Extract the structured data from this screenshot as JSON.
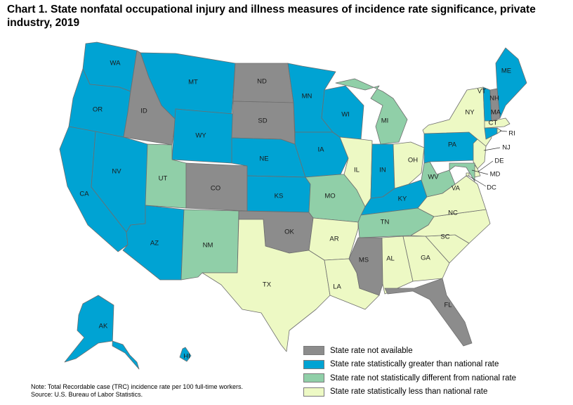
{
  "title": "Chart 1. State nonfatal occupational injury and illness measures of incidence rate significance, private industry, 2019",
  "colors": {
    "not_available": "#8c8c8c",
    "greater": "#00a3d3",
    "not_different": "#90cfa8",
    "less": "#edf9c4"
  },
  "legend": [
    {
      "key": "not_available",
      "label": "State rate not available"
    },
    {
      "key": "greater",
      "label": "State rate statistically greater than national rate"
    },
    {
      "key": "not_different",
      "label": "State rate not statistically different from national rate"
    },
    {
      "key": "less",
      "label": "State rate statistically less than national rate"
    }
  ],
  "states": {
    "WA": {
      "label": "WA",
      "category": "greater"
    },
    "OR": {
      "label": "OR",
      "category": "greater"
    },
    "CA": {
      "label": "CA",
      "category": "greater"
    },
    "ID": {
      "label": "ID",
      "category": "not_available"
    },
    "NV": {
      "label": "NV",
      "category": "greater"
    },
    "MT": {
      "label": "MT",
      "category": "greater"
    },
    "WY": {
      "label": "WY",
      "category": "greater"
    },
    "UT": {
      "label": "UT",
      "category": "not_different"
    },
    "AZ": {
      "label": "AZ",
      "category": "greater"
    },
    "CO": {
      "label": "CO",
      "category": "not_available"
    },
    "NM": {
      "label": "NM",
      "category": "not_different"
    },
    "ND": {
      "label": "ND",
      "category": "not_available"
    },
    "SD": {
      "label": "SD",
      "category": "not_available"
    },
    "NE": {
      "label": "NE",
      "category": "greater"
    },
    "KS": {
      "label": "KS",
      "category": "greater"
    },
    "OK": {
      "label": "OK",
      "category": "not_available"
    },
    "TX": {
      "label": "TX",
      "category": "less"
    },
    "MN": {
      "label": "MN",
      "category": "greater"
    },
    "IA": {
      "label": "IA",
      "category": "greater"
    },
    "MO": {
      "label": "MO",
      "category": "not_different"
    },
    "AR": {
      "label": "AR",
      "category": "less"
    },
    "LA": {
      "label": "LA",
      "category": "less"
    },
    "WI": {
      "label": "WI",
      "category": "greater"
    },
    "IL": {
      "label": "IL",
      "category": "less"
    },
    "MI": {
      "label": "MI",
      "category": "not_different"
    },
    "IN": {
      "label": "IN",
      "category": "greater"
    },
    "OH": {
      "label": "OH",
      "category": "less"
    },
    "KY": {
      "label": "KY",
      "category": "greater"
    },
    "TN": {
      "label": "TN",
      "category": "not_different"
    },
    "MS": {
      "label": "MS",
      "category": "not_available"
    },
    "AL": {
      "label": "AL",
      "category": "less"
    },
    "GA": {
      "label": "GA",
      "category": "less"
    },
    "FL": {
      "label": "FL",
      "category": "not_available"
    },
    "SC": {
      "label": "SC",
      "category": "less"
    },
    "NC": {
      "label": "NC",
      "category": "less"
    },
    "VA": {
      "label": "VA",
      "category": "less"
    },
    "WV": {
      "label": "WV",
      "category": "not_different"
    },
    "PA": {
      "label": "PA",
      "category": "greater"
    },
    "NY": {
      "label": "NY",
      "category": "less"
    },
    "VT": {
      "label": "VT",
      "category": "greater"
    },
    "NH": {
      "label": "NH",
      "category": "not_available"
    },
    "ME": {
      "label": "ME",
      "category": "greater"
    },
    "MA": {
      "label": "MA",
      "category": "less"
    },
    "RI": {
      "label": "RI",
      "category": "less"
    },
    "CT": {
      "label": "CT",
      "category": "greater"
    },
    "NJ": {
      "label": "NJ",
      "category": "less"
    },
    "DE": {
      "label": "DE",
      "category": "less"
    },
    "MD": {
      "label": "MD",
      "category": "not_different"
    },
    "DC": {
      "label": "DC",
      "category": "less"
    },
    "AK": {
      "label": "AK",
      "category": "greater"
    },
    "HI": {
      "label": "HI",
      "category": "greater"
    }
  },
  "note": {
    "line1": "Note: Total Recordable case (TRC) incidence rate per 100 full-time workers.",
    "line2": "Source: U.S. Bureau of Labor Statistics."
  }
}
